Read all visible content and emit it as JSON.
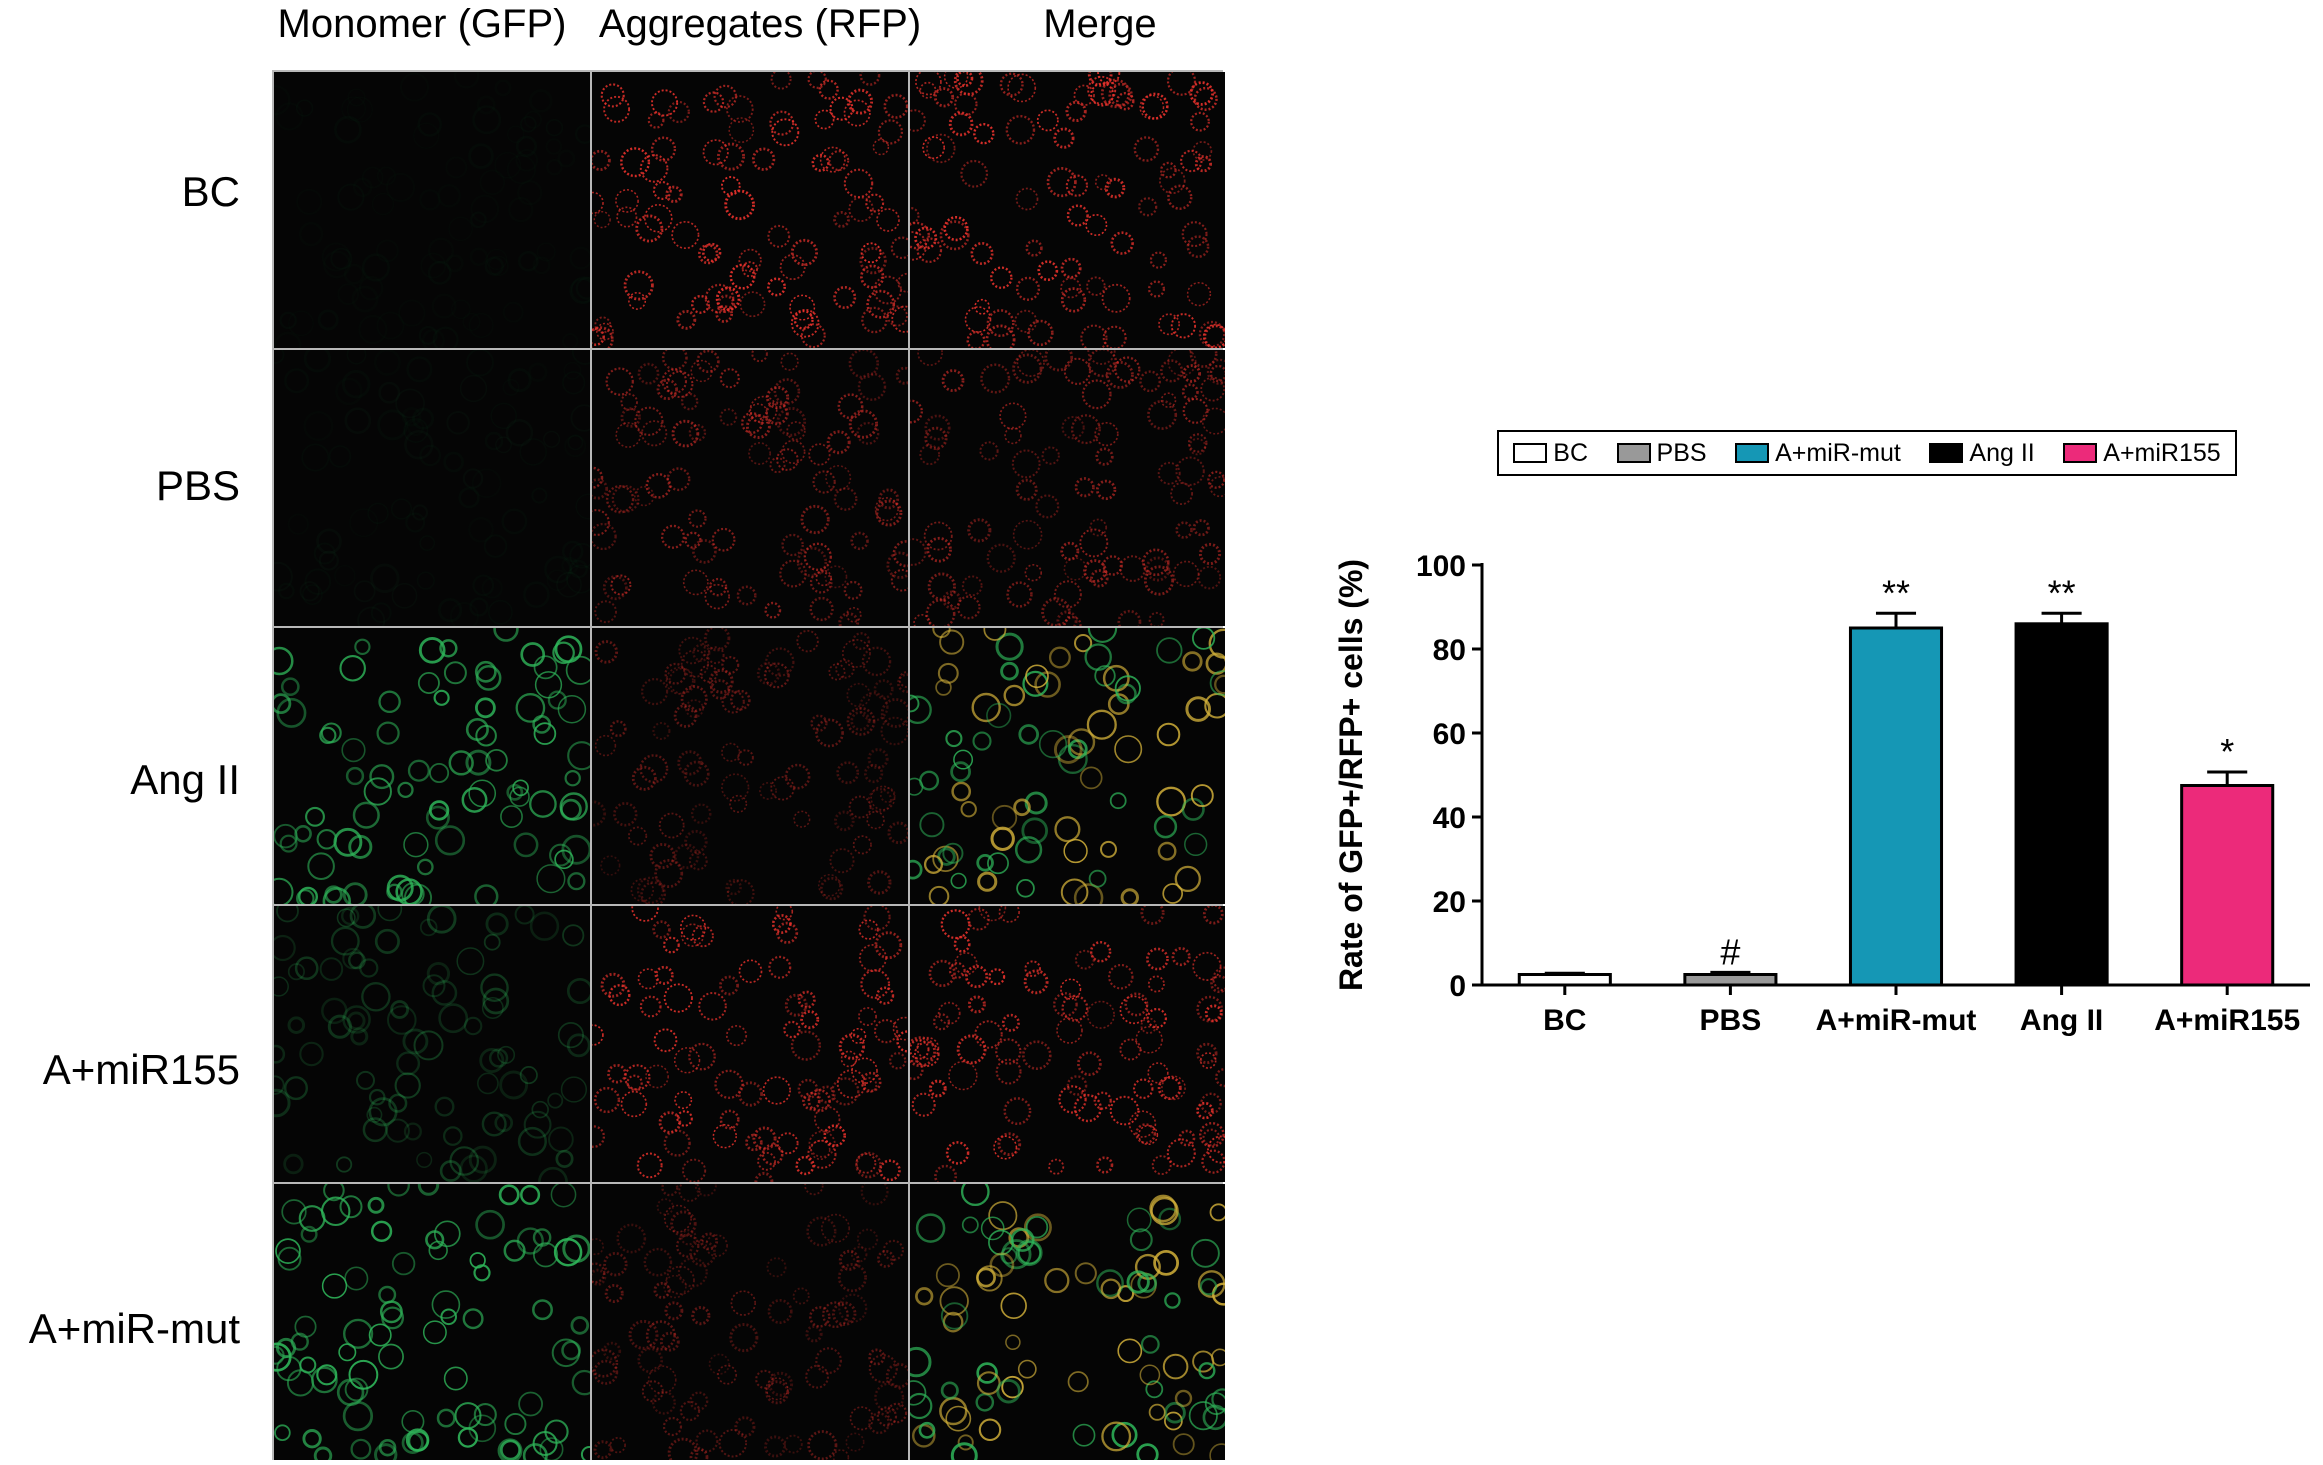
{
  "figure": {
    "column_headers": [
      "Monomer (GFP)",
      "Aggregates (RFP)",
      "Merge"
    ],
    "row_labels": [
      "BC",
      "PBS",
      "Ang II",
      "A+miR155",
      "A+miR-mut"
    ],
    "panels": [
      {
        "row": "BC",
        "green_level": 0.03,
        "red_level": 0.95
      },
      {
        "row": "PBS",
        "green_level": 0.04,
        "red_level": 0.6
      },
      {
        "row": "Ang II",
        "green_level": 0.85,
        "red_level": 0.4
      },
      {
        "row": "A+miR155",
        "green_level": 0.3,
        "red_level": 0.9
      },
      {
        "row": "A+miR-mut",
        "green_level": 0.9,
        "red_level": 0.4
      }
    ],
    "colors": {
      "green_channel": "#2fb65a",
      "red_channel": "#e8322c",
      "merge_overlap": "#d4b23a"
    }
  },
  "chart_data": {
    "type": "bar",
    "categories": [
      "BC",
      "PBS",
      "A+miR-mut",
      "Ang II",
      "A+miR155"
    ],
    "values": [
      2.5,
      2.5,
      85,
      86,
      47.5
    ],
    "errors": [
      0.3,
      0.5,
      3.5,
      2.5,
      3.2
    ],
    "significance": [
      "",
      "#",
      "**",
      "**",
      "*"
    ],
    "colors": [
      "#ffffff",
      "#999999",
      "#1597b5",
      "#000000",
      "#ec2a7a"
    ],
    "ylabel": "Rate of GFP+/RFP+ cells (%)",
    "xlabel": "",
    "ylim": [
      0,
      100
    ],
    "yticks": [
      "0",
      "20",
      "40",
      "60",
      "80",
      "100"
    ],
    "legend": {
      "position": "top",
      "entries": [
        "BC",
        "PBS",
        "A+miR-mut",
        "Ang II",
        "A+miR155"
      ]
    }
  }
}
